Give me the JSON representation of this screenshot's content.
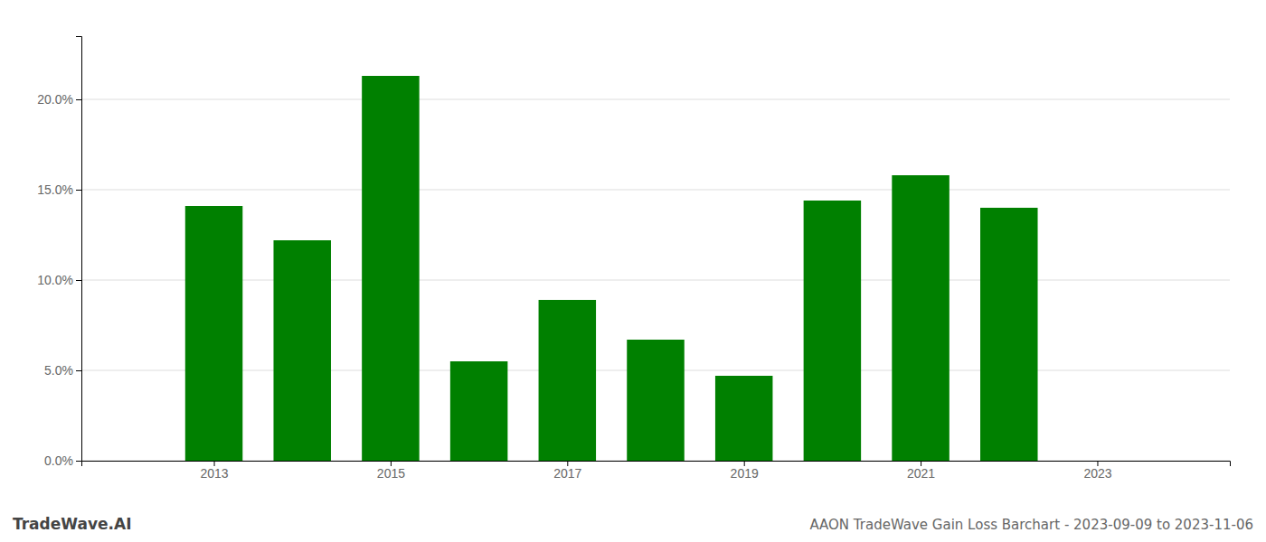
{
  "chart_data": {
    "type": "bar",
    "title": "AAON TradeWave Gain Loss Barchart - 2023-09-09 to 2023-11-06",
    "annotations": [
      "TradeWave.AI"
    ],
    "x": [
      2013,
      2014,
      2015,
      2016,
      2017,
      2018,
      2019,
      2020,
      2021,
      2022
    ],
    "values": [
      0.141,
      0.122,
      0.213,
      0.055,
      0.089,
      0.067,
      0.047,
      0.144,
      0.158,
      0.14
    ],
    "color": "#008000",
    "xlim": [
      2011.5,
      2024.5
    ],
    "xticks": [
      2013,
      2015,
      2017,
      2019,
      2021,
      2023
    ],
    "ylim": [
      0.0,
      0.235
    ],
    "yticks": [
      {
        "value": 0.0,
        "label": "0.0%"
      },
      {
        "value": 0.05,
        "label": "5.0%"
      },
      {
        "value": 0.1,
        "label": "10.0%"
      },
      {
        "value": 0.15,
        "label": "15.0%"
      },
      {
        "value": 0.2,
        "label": "20.0%"
      }
    ],
    "grid": true
  }
}
